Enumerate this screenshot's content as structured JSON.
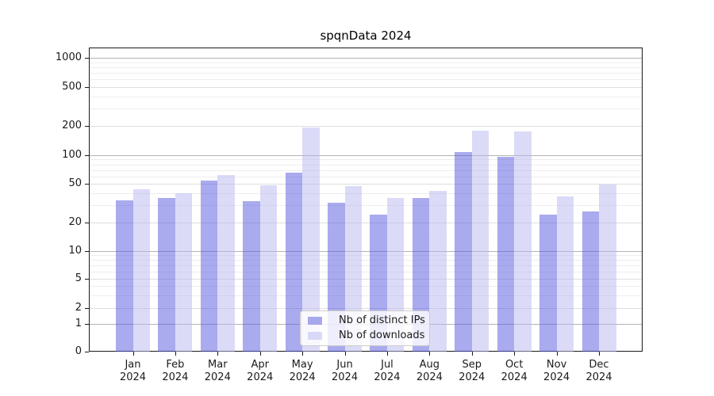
{
  "title": "spqnData 2024",
  "colors": {
    "ips_bar": "#aaaaee",
    "downloads_bar": "#dbdbf7",
    "grid_decade": "#b3b3b3",
    "grid_labeled": "#dedede",
    "grid_minor": "#ededed",
    "axis": "#1a1a1a",
    "legend_border": "#cccccc"
  },
  "chart_data": {
    "type": "bar",
    "title": "spqnData 2024",
    "categories": [
      "Jan",
      "Feb",
      "Mar",
      "Apr",
      "May",
      "Jun",
      "Jul",
      "Aug",
      "Sep",
      "Oct",
      "Nov",
      "Dec"
    ],
    "category_year": "2024",
    "series": [
      {
        "name": "Nb of distinct IPs",
        "color": "#aaaaee",
        "values": [
          34,
          36,
          54,
          33,
          65,
          32,
          24,
          36,
          108,
          96,
          24,
          26
        ]
      },
      {
        "name": "Nb of downloads",
        "color": "#dbdbf7",
        "values": [
          44,
          40,
          62,
          48,
          193,
          47,
          36,
          42,
          180,
          175,
          37,
          49
        ]
      }
    ],
    "xlabel": "",
    "ylabel": "",
    "yscale": "symlog",
    "yticks": [
      0,
      1,
      2,
      5,
      10,
      20,
      50,
      100,
      200,
      500,
      1000
    ],
    "ylim": [
      0,
      1300
    ],
    "grid": "horizontal, major and minor",
    "legend_position": "lower center"
  }
}
